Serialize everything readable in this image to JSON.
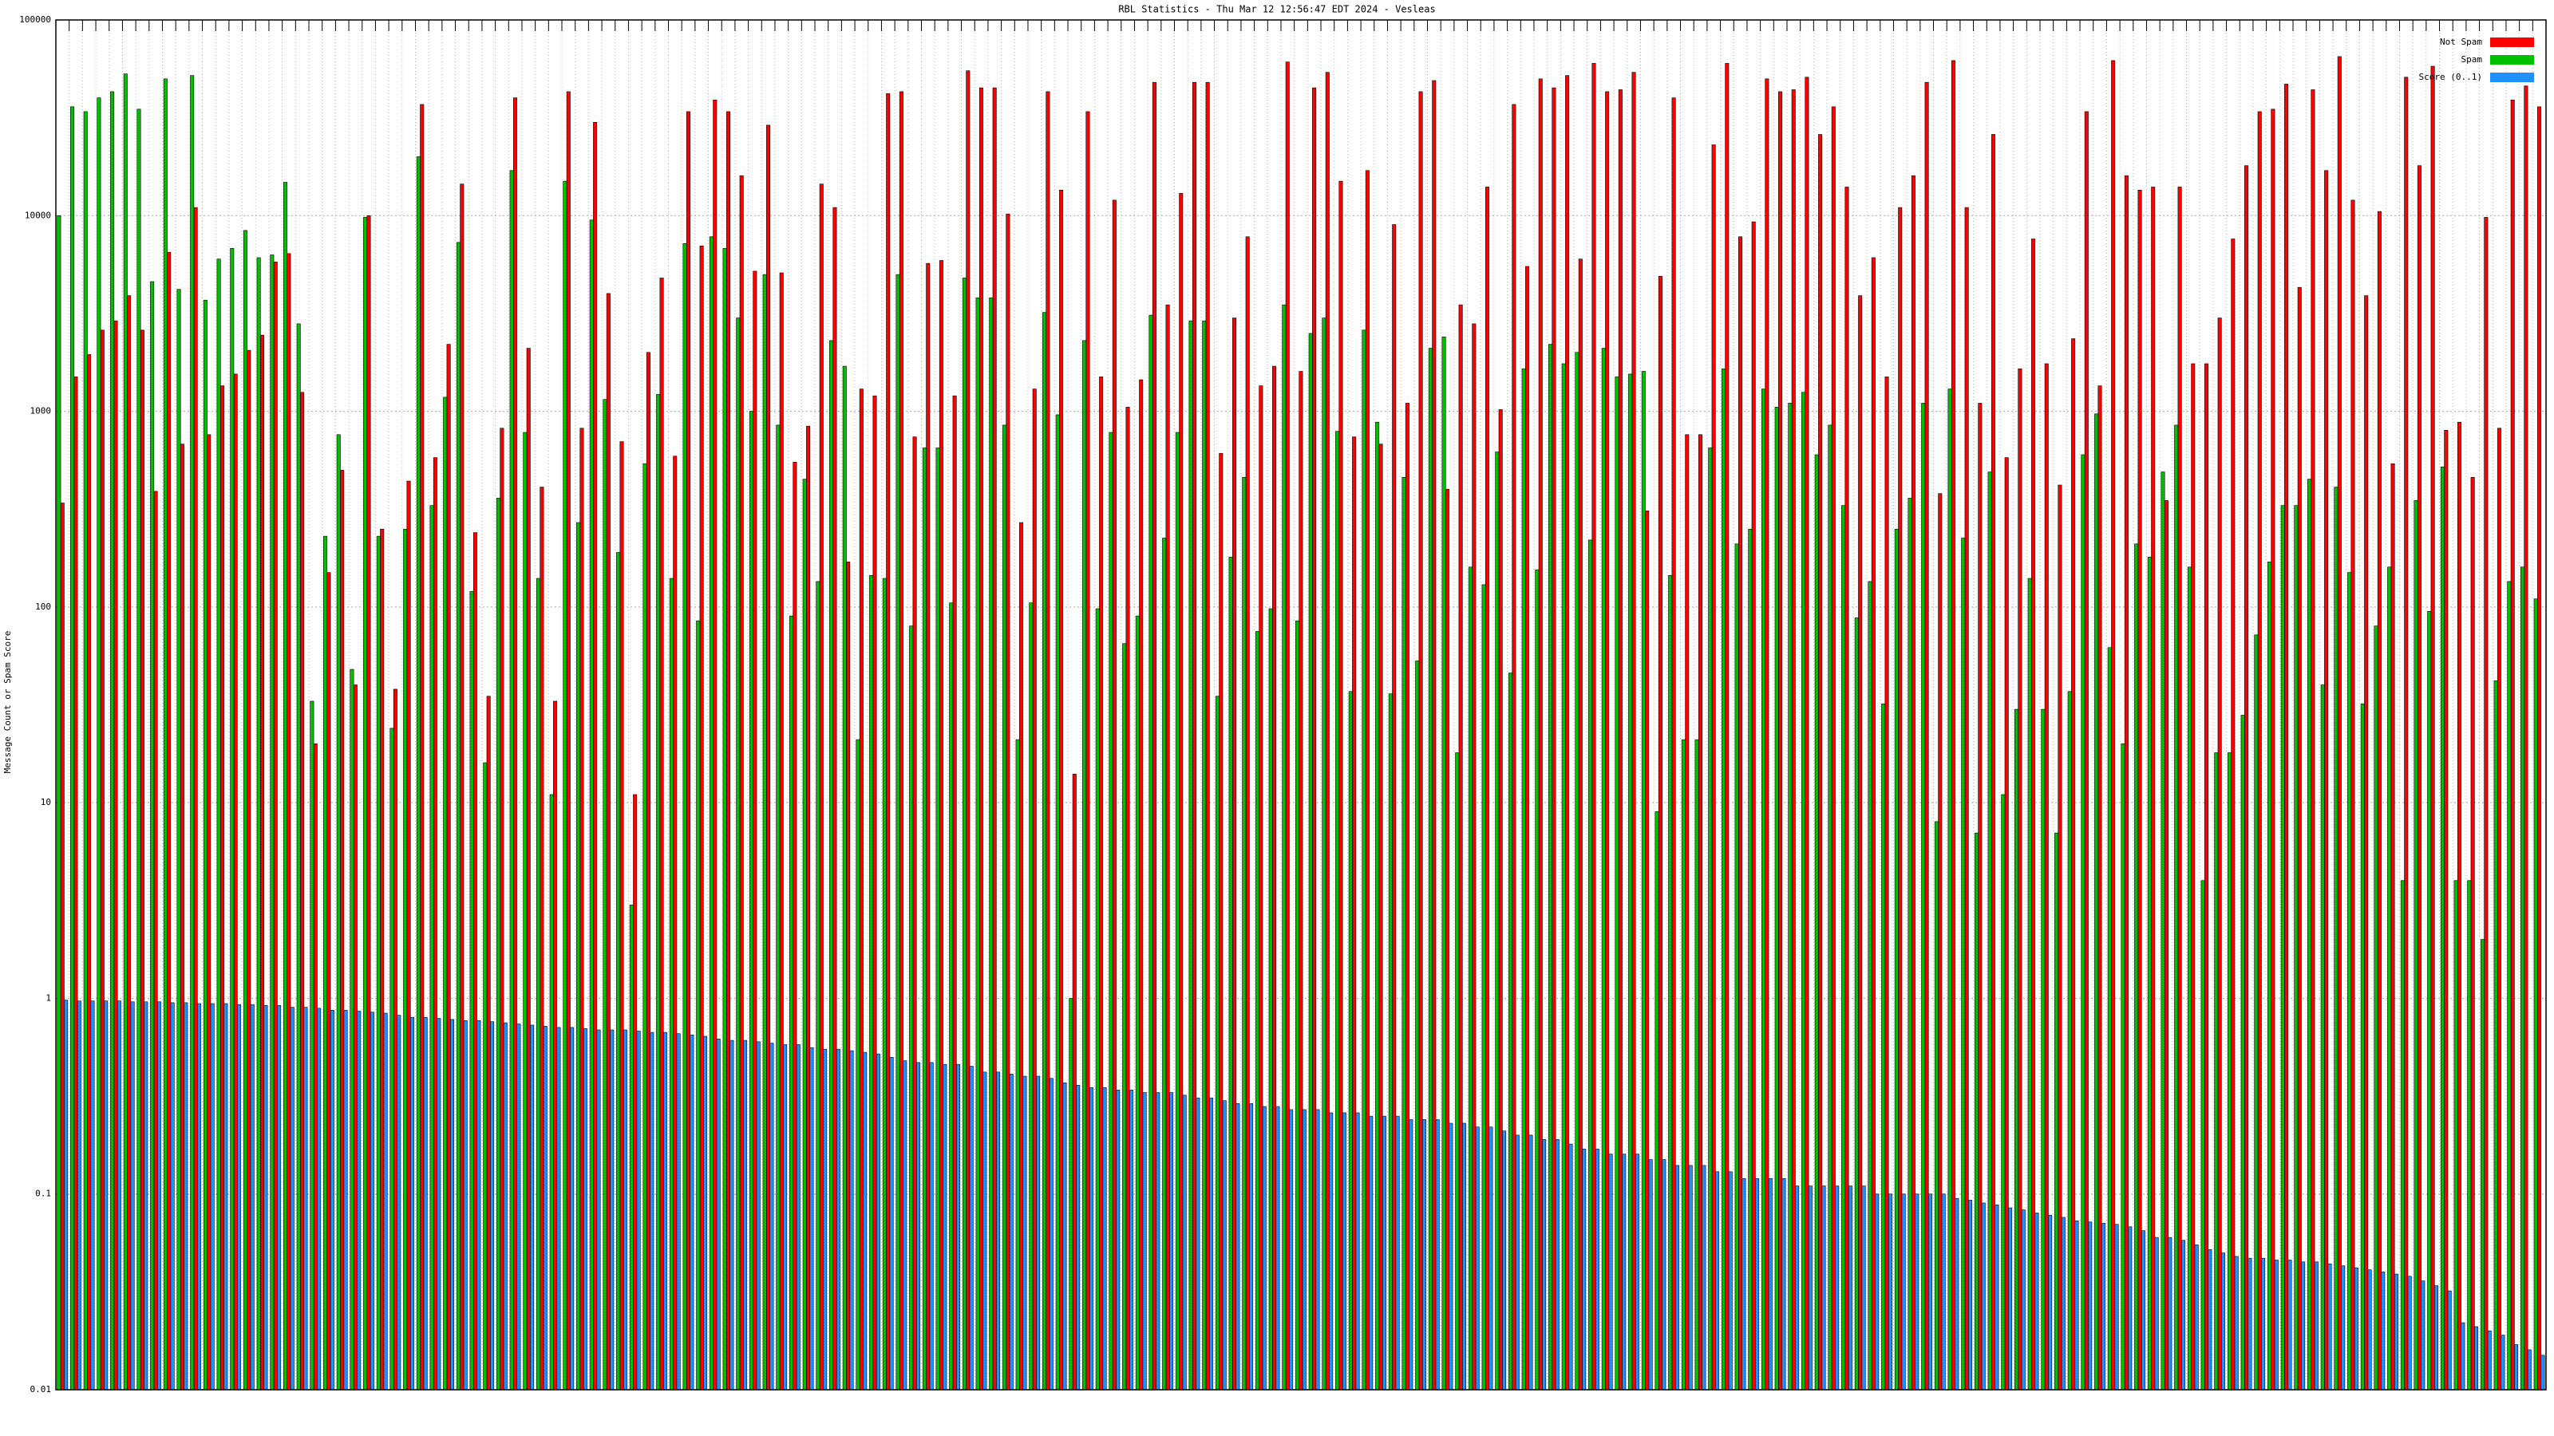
{
  "chart_data": {
    "type": "bar",
    "title": "RBL Statistics - Thu Mar 12 12:56:47 EDT 2024 - Vesleas",
    "y_label": "Message Count or Spam Score",
    "log_scale": true,
    "grid": true,
    "legend": "top-right",
    "ylim": [
      0.01,
      100000
    ],
    "yticks": [
      0.01,
      0.1,
      1,
      10,
      100,
      1000,
      10000,
      100000
    ],
    "series": [
      {
        "name": "Not Spam",
        "color": "#ff0000",
        "values": [
          340,
          1500,
          1950,
          2600,
          2900,
          3900,
          2600,
          390,
          6500,
          680,
          11000,
          760,
          1350,
          1550,
          2050,
          2450,
          5800,
          6400,
          1250,
          20,
          150,
          500,
          40,
          10000,
          250,
          38,
          440,
          37000,
          580,
          2200,
          14500,
          240,
          35,
          820,
          40000,
          2100,
          410,
          33,
          43000,
          820,
          30000,
          4000,
          700,
          11,
          2000,
          4800,
          590,
          34000,
          7000,
          39000,
          34000,
          16000,
          5200,
          29000,
          5100,
          550,
          840,
          14500,
          11000,
          170,
          1300,
          1200,
          42000,
          43000,
          740,
          5700,
          5900,
          1200,
          55000,
          45000,
          45000,
          10200,
          270,
          1300,
          43000,
          13500,
          14,
          34000,
          1500,
          12000,
          1050,
          1450,
          48000,
          3500,
          13000,
          48000,
          48000,
          610,
          3000,
          7800,
          1350,
          1700,
          61000,
          1600,
          45000,
          54000,
          15000,
          740,
          17000,
          680,
          9000,
          1100,
          43000,
          49000,
          400,
          3500,
          2800,
          14000,
          1020,
          37000,
          5500,
          50000,
          45000,
          52000,
          6000,
          60000,
          43000,
          44000,
          54000,
          310,
          4900,
          40000,
          760,
          760,
          23000,
          60000,
          7800,
          9300,
          50000,
          43000,
          44000,
          51000,
          26000,
          36000,
          14000,
          3900,
          6100,
          1500,
          11000,
          16000,
          48000,
          380,
          62000,
          11000,
          1100,
          26000,
          580,
          1650,
          7600,
          1750,
          420,
          2350,
          34000,
          1350,
          62000,
          16000,
          13500,
          14000,
          350,
          14000,
          1750,
          1750,
          3000,
          7600,
          18000,
          34000,
          35000,
          47000,
          4300,
          44000,
          17000,
          65000,
          12000,
          3900,
          10500,
          540,
          51000,
          18000,
          58000,
          800,
          880,
          460,
          9800,
          820,
          39000,
          46000,
          36000
        ]
      },
      {
        "name": "Spam",
        "color": "#00c000",
        "values": [
          10000,
          36000,
          34000,
          40000,
          43000,
          53000,
          35000,
          4600,
          50000,
          4200,
          52000,
          3700,
          6000,
          6800,
          8400,
          6100,
          6300,
          14800,
          2800,
          33,
          230,
          760,
          48,
          9800,
          230,
          24,
          250,
          20000,
          330,
          1180,
          7300,
          120,
          16,
          360,
          17000,
          780,
          140,
          11,
          15000,
          270,
          9500,
          1150,
          190,
          3,
          540,
          1220,
          140,
          7200,
          85,
          7800,
          6800,
          3000,
          1000,
          5000,
          850,
          90,
          450,
          135,
          2300,
          1700,
          21,
          145,
          140,
          5000,
          80,
          650,
          650,
          105,
          4800,
          3800,
          3800,
          850,
          21,
          105,
          3200,
          960,
          1,
          2300,
          98,
          780,
          65,
          90,
          3100,
          225,
          780,
          2900,
          2900,
          35,
          180,
          460,
          75,
          98,
          3500,
          85,
          2500,
          3000,
          790,
          37,
          2600,
          880,
          36,
          460,
          53,
          2100,
          2400,
          18,
          160,
          130,
          620,
          46,
          1650,
          155,
          2200,
          1750,
          2000,
          220,
          2100,
          1500,
          1550,
          1600,
          9,
          145,
          21,
          21,
          650,
          1650,
          210,
          250,
          1300,
          1050,
          1100,
          1250,
          600,
          850,
          330,
          88,
          135,
          32,
          250,
          360,
          1100,
          8,
          1300,
          225,
          7,
          490,
          11,
          30,
          140,
          30,
          7,
          37,
          600,
          970,
          62,
          20,
          210,
          180,
          490,
          850,
          160,
          4,
          18,
          18,
          28,
          72,
          170,
          330,
          330,
          450,
          40,
          410,
          150,
          32,
          80,
          160,
          4,
          350,
          95,
          520,
          4,
          4,
          2,
          42,
          135,
          160,
          110
        ]
      },
      {
        "name": "Score (0..1)",
        "color": "#1e90ff",
        "values": [
          0.98,
          0.97,
          0.97,
          0.97,
          0.97,
          0.96,
          0.96,
          0.96,
          0.95,
          0.95,
          0.94,
          0.94,
          0.94,
          0.93,
          0.93,
          0.92,
          0.92,
          0.9,
          0.9,
          0.89,
          0.87,
          0.87,
          0.86,
          0.85,
          0.84,
          0.82,
          0.8,
          0.8,
          0.79,
          0.78,
          0.77,
          0.77,
          0.76,
          0.75,
          0.74,
          0.73,
          0.72,
          0.71,
          0.71,
          0.7,
          0.69,
          0.69,
          0.69,
          0.68,
          0.67,
          0.67,
          0.66,
          0.65,
          0.64,
          0.62,
          0.61,
          0.61,
          0.6,
          0.59,
          0.58,
          0.58,
          0.56,
          0.55,
          0.55,
          0.54,
          0.53,
          0.52,
          0.5,
          0.48,
          0.47,
          0.47,
          0.46,
          0.46,
          0.45,
          0.42,
          0.42,
          0.41,
          0.4,
          0.4,
          0.39,
          0.37,
          0.36,
          0.35,
          0.35,
          0.34,
          0.34,
          0.33,
          0.33,
          0.33,
          0.32,
          0.31,
          0.31,
          0.3,
          0.29,
          0.29,
          0.28,
          0.28,
          0.27,
          0.27,
          0.27,
          0.26,
          0.26,
          0.26,
          0.25,
          0.25,
          0.25,
          0.24,
          0.24,
          0.24,
          0.23,
          0.23,
          0.22,
          0.22,
          0.21,
          0.2,
          0.2,
          0.19,
          0.19,
          0.18,
          0.17,
          0.17,
          0.16,
          0.16,
          0.16,
          0.15,
          0.15,
          0.14,
          0.14,
          0.14,
          0.13,
          0.13,
          0.12,
          0.12,
          0.12,
          0.12,
          0.11,
          0.11,
          0.11,
          0.11,
          0.11,
          0.11,
          0.1,
          0.1,
          0.1,
          0.1,
          0.1,
          0.1,
          0.095,
          0.093,
          0.09,
          0.088,
          0.085,
          0.083,
          0.08,
          0.078,
          0.076,
          0.073,
          0.072,
          0.071,
          0.07,
          0.068,
          0.065,
          0.06,
          0.06,
          0.058,
          0.055,
          0.052,
          0.05,
          0.048,
          0.047,
          0.047,
          0.046,
          0.046,
          0.045,
          0.045,
          0.044,
          0.043,
          0.042,
          0.041,
          0.04,
          0.039,
          0.038,
          0.036,
          0.034,
          0.032,
          0.022,
          0.021,
          0.02,
          0.019,
          0.017,
          0.016,
          0.015
        ]
      }
    ]
  }
}
